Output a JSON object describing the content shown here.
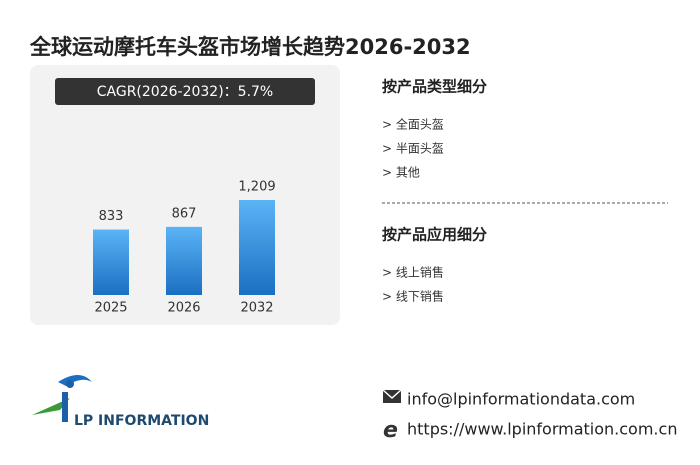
{
  "title": "全球运动摩托车头盔市场增长趋势2026-2032",
  "cagr": "CAGR(2026-2032)：5.7%",
  "chart_data": {
    "type": "bar",
    "categories": [
      "2025",
      "2026",
      "2032"
    ],
    "values": [
      833,
      867,
      1209
    ],
    "value_labels": [
      "833",
      "867",
      "1,209"
    ],
    "color": "#2a8ee0"
  },
  "segments": [
    {
      "title": "按产品类型细分",
      "items": [
        "> 全面头盔",
        "> 半面头盔",
        "> 其他"
      ]
    },
    {
      "title": "按产品应用细分",
      "items": [
        "> 线上销售",
        "> 线下销售"
      ]
    }
  ],
  "logo": "LP INFORMATION",
  "contact": {
    "email": "info@lpinformationdata.com",
    "website": "https://www.lpinformation.com.cn"
  }
}
